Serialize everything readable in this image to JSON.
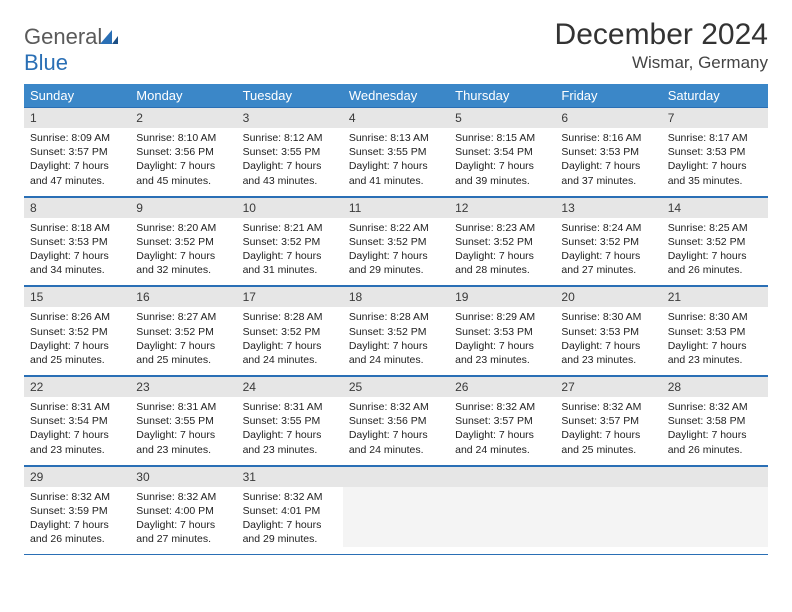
{
  "brand": {
    "name_a": "General",
    "name_b": "Blue"
  },
  "title": "December 2024",
  "location": "Wismar, Germany",
  "colors": {
    "header_bg": "#3b87c8",
    "rule": "#2a6fb5",
    "daynum_bg": "#e6e6e6"
  },
  "weekdays": [
    "Sunday",
    "Monday",
    "Tuesday",
    "Wednesday",
    "Thursday",
    "Friday",
    "Saturday"
  ],
  "days": [
    {
      "n": "1",
      "sr": "8:09 AM",
      "ss": "3:57 PM",
      "dl": "7 hours and 47 minutes."
    },
    {
      "n": "2",
      "sr": "8:10 AM",
      "ss": "3:56 PM",
      "dl": "7 hours and 45 minutes."
    },
    {
      "n": "3",
      "sr": "8:12 AM",
      "ss": "3:55 PM",
      "dl": "7 hours and 43 minutes."
    },
    {
      "n": "4",
      "sr": "8:13 AM",
      "ss": "3:55 PM",
      "dl": "7 hours and 41 minutes."
    },
    {
      "n": "5",
      "sr": "8:15 AM",
      "ss": "3:54 PM",
      "dl": "7 hours and 39 minutes."
    },
    {
      "n": "6",
      "sr": "8:16 AM",
      "ss": "3:53 PM",
      "dl": "7 hours and 37 minutes."
    },
    {
      "n": "7",
      "sr": "8:17 AM",
      "ss": "3:53 PM",
      "dl": "7 hours and 35 minutes."
    },
    {
      "n": "8",
      "sr": "8:18 AM",
      "ss": "3:53 PM",
      "dl": "7 hours and 34 minutes."
    },
    {
      "n": "9",
      "sr": "8:20 AM",
      "ss": "3:52 PM",
      "dl": "7 hours and 32 minutes."
    },
    {
      "n": "10",
      "sr": "8:21 AM",
      "ss": "3:52 PM",
      "dl": "7 hours and 31 minutes."
    },
    {
      "n": "11",
      "sr": "8:22 AM",
      "ss": "3:52 PM",
      "dl": "7 hours and 29 minutes."
    },
    {
      "n": "12",
      "sr": "8:23 AM",
      "ss": "3:52 PM",
      "dl": "7 hours and 28 minutes."
    },
    {
      "n": "13",
      "sr": "8:24 AM",
      "ss": "3:52 PM",
      "dl": "7 hours and 27 minutes."
    },
    {
      "n": "14",
      "sr": "8:25 AM",
      "ss": "3:52 PM",
      "dl": "7 hours and 26 minutes."
    },
    {
      "n": "15",
      "sr": "8:26 AM",
      "ss": "3:52 PM",
      "dl": "7 hours and 25 minutes."
    },
    {
      "n": "16",
      "sr": "8:27 AM",
      "ss": "3:52 PM",
      "dl": "7 hours and 25 minutes."
    },
    {
      "n": "17",
      "sr": "8:28 AM",
      "ss": "3:52 PM",
      "dl": "7 hours and 24 minutes."
    },
    {
      "n": "18",
      "sr": "8:28 AM",
      "ss": "3:52 PM",
      "dl": "7 hours and 24 minutes."
    },
    {
      "n": "19",
      "sr": "8:29 AM",
      "ss": "3:53 PM",
      "dl": "7 hours and 23 minutes."
    },
    {
      "n": "20",
      "sr": "8:30 AM",
      "ss": "3:53 PM",
      "dl": "7 hours and 23 minutes."
    },
    {
      "n": "21",
      "sr": "8:30 AM",
      "ss": "3:53 PM",
      "dl": "7 hours and 23 minutes."
    },
    {
      "n": "22",
      "sr": "8:31 AM",
      "ss": "3:54 PM",
      "dl": "7 hours and 23 minutes."
    },
    {
      "n": "23",
      "sr": "8:31 AM",
      "ss": "3:55 PM",
      "dl": "7 hours and 23 minutes."
    },
    {
      "n": "24",
      "sr": "8:31 AM",
      "ss": "3:55 PM",
      "dl": "7 hours and 23 minutes."
    },
    {
      "n": "25",
      "sr": "8:32 AM",
      "ss": "3:56 PM",
      "dl": "7 hours and 24 minutes."
    },
    {
      "n": "26",
      "sr": "8:32 AM",
      "ss": "3:57 PM",
      "dl": "7 hours and 24 minutes."
    },
    {
      "n": "27",
      "sr": "8:32 AM",
      "ss": "3:57 PM",
      "dl": "7 hours and 25 minutes."
    },
    {
      "n": "28",
      "sr": "8:32 AM",
      "ss": "3:58 PM",
      "dl": "7 hours and 26 minutes."
    },
    {
      "n": "29",
      "sr": "8:32 AM",
      "ss": "3:59 PM",
      "dl": "7 hours and 26 minutes."
    },
    {
      "n": "30",
      "sr": "8:32 AM",
      "ss": "4:00 PM",
      "dl": "7 hours and 27 minutes."
    },
    {
      "n": "31",
      "sr": "8:32 AM",
      "ss": "4:01 PM",
      "dl": "7 hours and 29 minutes."
    }
  ],
  "labels": {
    "sunrise": "Sunrise:",
    "sunset": "Sunset:",
    "daylight": "Daylight:"
  }
}
